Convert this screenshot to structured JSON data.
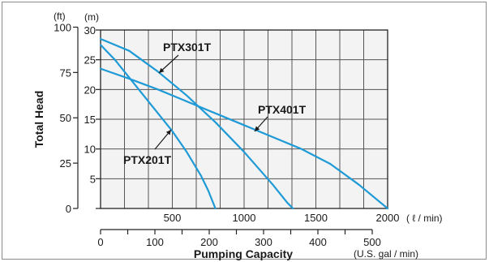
{
  "chart_data": {
    "type": "line",
    "ylabel": "Total Head",
    "xlabel": "Pumping Capacity",
    "x_unit_primary": "( ℓ / min)",
    "x_unit_secondary": "(U.S. gal / min)",
    "y_unit_m": "(m)",
    "y_unit_ft": "(ft)",
    "x_ticks_lpm": [
      0,
      500,
      1000,
      1500,
      2000
    ],
    "x_tick_labels_lpm": [
      "500",
      "1000",
      "1500",
      "2000"
    ],
    "x_ticks_gpm": [
      0,
      100,
      200,
      300,
      400,
      500
    ],
    "x_tick_labels_gpm": [
      "0",
      "100",
      "200",
      "300",
      "400",
      "500"
    ],
    "y_ticks_m": [
      5,
      10,
      15,
      20,
      25,
      30
    ],
    "y_tick_labels_m": [
      "5",
      "10",
      "15",
      "20",
      "25",
      "30"
    ],
    "y_ticks_ft": [
      0,
      25,
      50,
      75,
      100
    ],
    "y_tick_labels_ft": [
      "0",
      "25",
      "50",
      "75",
      "100"
    ],
    "xlim_lpm": [
      0,
      2000
    ],
    "ylim_m": [
      0,
      30
    ],
    "grid": true,
    "series": [
      {
        "name": "PTX301T",
        "x": [
          0,
          200,
          400,
          600,
          800,
          1000,
          1200,
          1300,
          1340
        ],
        "y": [
          28.5,
          26.5,
          23,
          19,
          14.5,
          9.5,
          4,
          1,
          0
        ]
      },
      {
        "name": "PTX201T",
        "x": [
          0,
          100,
          200,
          300,
          400,
          500,
          600,
          700,
          750,
          800
        ],
        "y": [
          27.5,
          25,
          22,
          19,
          16,
          13,
          9.5,
          5.5,
          3,
          0
        ]
      },
      {
        "name": "PTX401T",
        "x": [
          0,
          200,
          400,
          600,
          800,
          1000,
          1200,
          1400,
          1600,
          1800,
          2000
        ],
        "y": [
          23.5,
          21.8,
          20,
          18,
          16,
          14,
          12,
          10,
          7.5,
          4,
          0
        ]
      }
    ],
    "annotations": [
      "PTX301T",
      "PTX201T",
      "PTX401T"
    ],
    "line_color": "#1e9ad6",
    "grid_color": "#555555",
    "background_color": "#f3f3f3"
  }
}
